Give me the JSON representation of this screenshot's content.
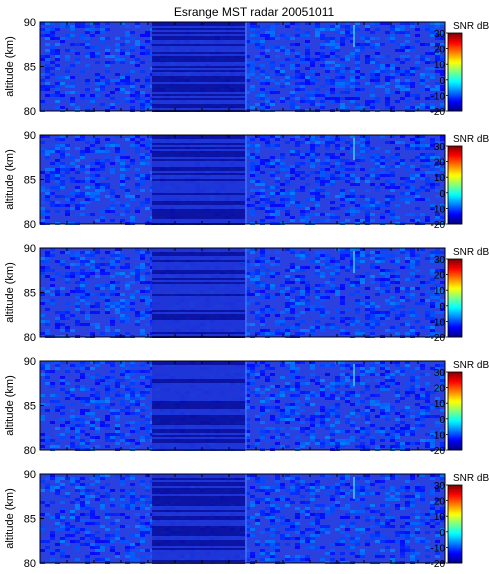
{
  "title": "Esrange MST radar 20051011",
  "chart_data": [
    {
      "type": "heatmap",
      "ylabel": "altitude (km)",
      "ylim": [
        80,
        90
      ],
      "yticks": [
        80,
        85,
        90
      ],
      "colorbar": {
        "label": "SNR dB",
        "range": [
          -20,
          30
        ],
        "ticks": [
          30,
          20,
          10,
          0,
          -10,
          -20
        ]
      }
    },
    {
      "type": "heatmap",
      "ylabel": "altitude (km)",
      "ylim": [
        80,
        90
      ],
      "yticks": [
        80,
        85,
        90
      ],
      "colorbar": {
        "label": "SNR dB",
        "range": [
          -20,
          30
        ],
        "ticks": [
          30,
          20,
          10,
          0,
          -10,
          -20
        ]
      }
    },
    {
      "type": "heatmap",
      "ylabel": "altitude (km)",
      "ylim": [
        80,
        90
      ],
      "yticks": [
        80,
        85,
        90
      ],
      "colorbar": {
        "label": "SNR dB",
        "range": [
          -20,
          30
        ],
        "ticks": [
          30,
          20,
          10,
          0,
          -10,
          -20
        ]
      }
    },
    {
      "type": "heatmap",
      "ylabel": "altitude (km)",
      "ylim": [
        80,
        90
      ],
      "yticks": [
        80,
        85,
        90
      ],
      "colorbar": {
        "label": "SNR dB",
        "range": [
          -20,
          30
        ],
        "ticks": [
          30,
          20,
          10,
          0,
          -10,
          -20
        ]
      }
    },
    {
      "type": "heatmap",
      "ylabel": "altitude (km)",
      "ylim": [
        80,
        90
      ],
      "yticks": [
        80,
        85,
        90
      ],
      "colorbar": {
        "label": "SNR dB",
        "range": [
          -20,
          30
        ],
        "ticks": [
          30,
          20,
          10,
          0,
          -10,
          -20
        ]
      }
    }
  ]
}
